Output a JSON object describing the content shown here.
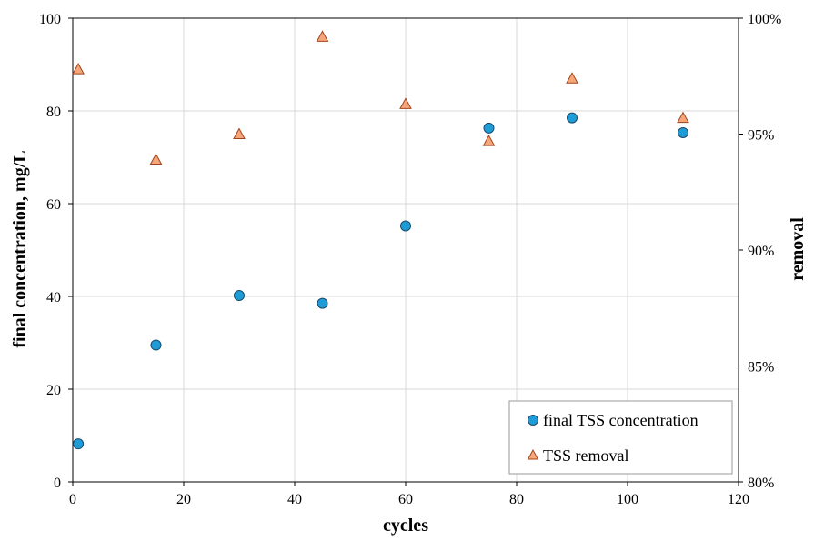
{
  "chart_data": {
    "type": "scatter",
    "xlabel": "cycles",
    "ylabel": "final concentration, mg/L",
    "y2label": "removal",
    "xlim": [
      0,
      120
    ],
    "ylim": [
      0,
      100
    ],
    "y2lim": [
      0.8,
      1.0
    ],
    "xticks": [
      "0",
      "20",
      "40",
      "60",
      "80",
      "100",
      "120"
    ],
    "yticks": [
      "0",
      "20",
      "40",
      "60",
      "80",
      "100"
    ],
    "y2ticks": [
      "80%",
      "85%",
      "90%",
      "95%",
      "100%"
    ],
    "grid": true,
    "legend_position": "bottom-right",
    "series": [
      {
        "name": "final TSS concentration",
        "axis": "left",
        "marker": "circle",
        "color": "#1f9bd6",
        "x": [
          1,
          15,
          30,
          45,
          60,
          75,
          90,
          110
        ],
        "y": [
          8.2,
          29.5,
          40.2,
          38.5,
          55.2,
          76.3,
          78.5,
          75.3
        ]
      },
      {
        "name": "TSS removal",
        "axis": "right",
        "marker": "triangle",
        "color": "#f5a77b",
        "x": [
          1,
          15,
          30,
          45,
          60,
          75,
          90,
          110
        ],
        "y": [
          0.978,
          0.939,
          0.95,
          0.992,
          0.963,
          0.947,
          0.974,
          0.957
        ]
      }
    ]
  }
}
